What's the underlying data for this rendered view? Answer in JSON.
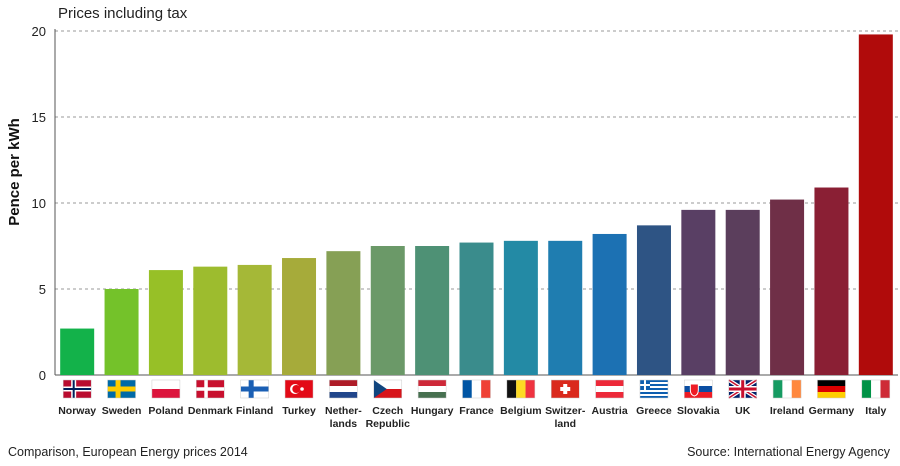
{
  "chart_data": {
    "type": "bar",
    "subtitle": "Prices including tax",
    "ylabel": "Pence per kWh",
    "ylim": [
      0,
      20
    ],
    "yticks": [
      0,
      5,
      10,
      15,
      20
    ],
    "grid": true,
    "categories": [
      "Norway",
      "Sweden",
      "Poland",
      "Denmark",
      "Finland",
      "Turkey",
      "Nether-lands",
      "Czech Republic",
      "Hungary",
      "France",
      "Belgium",
      "Switzer-land",
      "Austria",
      "Greece",
      "Slovakia",
      "UK",
      "Ireland",
      "Germany",
      "Italy"
    ],
    "label_lines": [
      [
        "Norway"
      ],
      [
        "Sweden"
      ],
      [
        "Poland"
      ],
      [
        "Denmark"
      ],
      [
        "Finland"
      ],
      [
        "Turkey"
      ],
      [
        "Nether-",
        "lands"
      ],
      [
        "Czech",
        "Republic"
      ],
      [
        "Hungary"
      ],
      [
        "France"
      ],
      [
        "Belgium"
      ],
      [
        "Switzer-",
        "land"
      ],
      [
        "Austria"
      ],
      [
        "Greece"
      ],
      [
        "Slovakia"
      ],
      [
        "UK"
      ],
      [
        "Ireland"
      ],
      [
        "Germany"
      ],
      [
        "Italy"
      ]
    ],
    "values": [
      2.7,
      5.0,
      6.1,
      6.3,
      6.4,
      6.8,
      7.2,
      7.5,
      7.5,
      7.7,
      7.8,
      7.8,
      8.2,
      8.7,
      9.6,
      9.6,
      10.2,
      10.9,
      19.8
    ],
    "colors": [
      "#13b24a",
      "#74c22a",
      "#97c027",
      "#9dbc2e",
      "#a5b837",
      "#a6ab3a",
      "#86a055",
      "#6b9968",
      "#4e9175",
      "#3a8c8c",
      "#238aa5",
      "#1f7db0",
      "#1c71b3",
      "#2e5484",
      "#593f64",
      "#5b3e5c",
      "#6f2f47",
      "#8a1f34",
      "#b00b0b"
    ],
    "flags": [
      "norway",
      "sweden",
      "poland",
      "denmark",
      "finland",
      "turkey",
      "netherlands",
      "czech-republic",
      "hungary",
      "france",
      "belgium",
      "switzerland",
      "austria",
      "greece",
      "slovakia",
      "uk",
      "ireland",
      "germany",
      "italy"
    ],
    "gridline_color": "#999999",
    "axis_color": "#555555"
  },
  "footer": {
    "left": "Comparison, European Energy prices 2014",
    "right": "Source: International Energy Agency"
  }
}
